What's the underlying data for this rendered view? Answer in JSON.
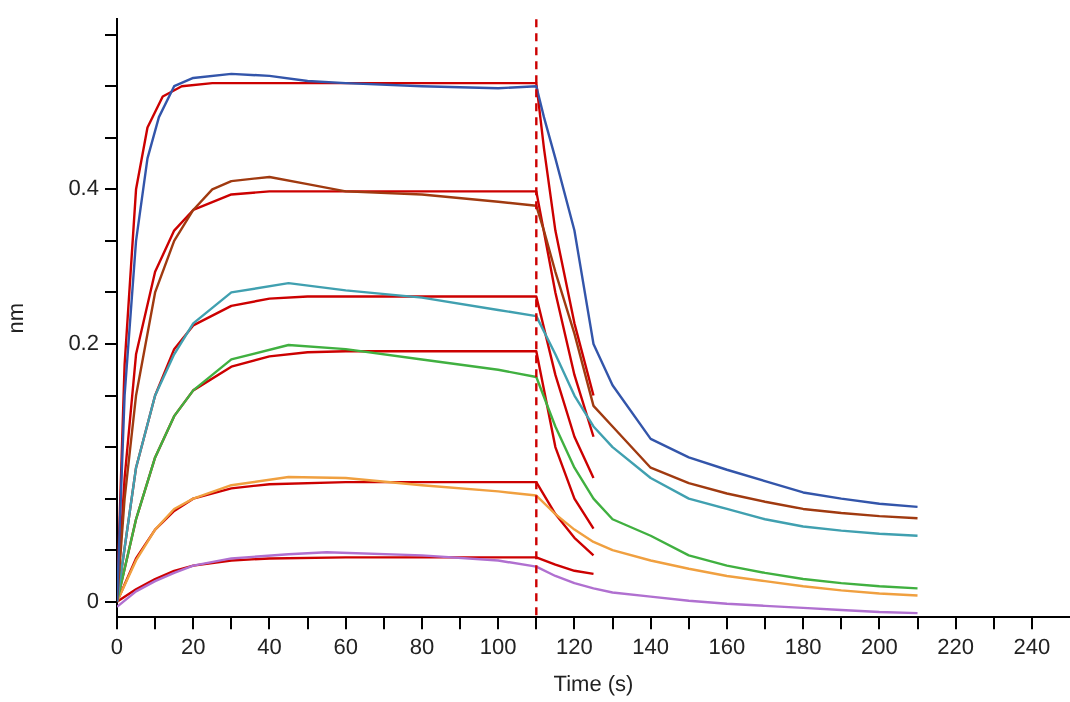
{
  "chart_data": {
    "type": "line",
    "xlabel": "Time (s)",
    "ylabel": "nm",
    "legend": false,
    "grid": false,
    "marker": "none",
    "line_style": "solid",
    "xlim": [
      0,
      250
    ],
    "xticks": [
      0,
      {
        "value": 10,
        "label": null
      },
      20,
      {
        "value": 30,
        "label": null
      },
      40,
      {
        "value": 50,
        "label": null
      },
      60,
      {
        "value": 70,
        "label": null
      },
      80,
      {
        "value": 90,
        "label": null
      },
      100,
      {
        "value": 110,
        "label": null
      },
      120,
      {
        "value": 130,
        "label": null
      },
      140,
      {
        "value": 150,
        "label": null
      },
      160,
      {
        "value": 170,
        "label": null
      },
      180,
      {
        "value": 190,
        "label": null
      },
      200,
      {
        "value": 210,
        "label": null
      },
      220,
      {
        "value": 230,
        "label": null
      },
      240
    ],
    "ylim": [
      -0.015,
      0.565
    ],
    "yticks": [
      0,
      {
        "value": 0.05,
        "label": null
      },
      {
        "value": 0.1,
        "label": null
      },
      {
        "value": 0.15,
        "label": null
      },
      {
        "value": 0.2,
        "label": null
      },
      {
        "value": 0.25,
        "label": "0.2"
      },
      {
        "value": 0.3,
        "label": null
      },
      {
        "value": 0.35,
        "label": null
      },
      {
        "value": 0.4,
        "label": "0.4"
      },
      {
        "value": 0.45,
        "label": null
      },
      {
        "value": 0.5,
        "label": null
      },
      {
        "value": 0.55,
        "label": null
      }
    ],
    "ref_lines": [
      {
        "axis": "x",
        "value": 110,
        "color": "#cc0000",
        "line_style": "dashed"
      }
    ],
    "series": [
      {
        "color": "#3355aa",
        "x": [
          0,
          2,
          5,
          8,
          11,
          15,
          20,
          30,
          40,
          50,
          60,
          80,
          100,
          110,
          112,
          115,
          120,
          125,
          130,
          140,
          150,
          160,
          170,
          180,
          190,
          200,
          210
        ],
        "values": [
          0,
          0.2,
          0.35,
          0.43,
          0.47,
          0.5,
          0.508,
          0.512,
          0.51,
          0.505,
          0.503,
          0.5,
          0.498,
          0.5,
          0.47,
          0.43,
          0.36,
          0.25,
          0.21,
          0.158,
          0.14,
          0.128,
          0.117,
          0.106,
          0.1,
          0.095,
          0.092
        ]
      },
      {
        "color": "#a03a10",
        "x": [
          0,
          2,
          5,
          10,
          15,
          20,
          25,
          30,
          40,
          50,
          60,
          80,
          100,
          110,
          112,
          115,
          120,
          125,
          130,
          140,
          150,
          160,
          170,
          180,
          190,
          200,
          210
        ],
        "values": [
          0,
          0.1,
          0.2,
          0.3,
          0.35,
          0.38,
          0.4,
          0.408,
          0.412,
          0.405,
          0.398,
          0.395,
          0.388,
          0.384,
          0.36,
          0.32,
          0.26,
          0.19,
          0.17,
          0.13,
          0.115,
          0.105,
          0.097,
          0.09,
          0.086,
          0.083,
          0.081
        ]
      },
      {
        "color": "#40a0b0",
        "x": [
          0,
          5,
          10,
          15,
          20,
          30,
          45,
          60,
          80,
          100,
          110,
          115,
          120,
          125,
          130,
          140,
          150,
          160,
          170,
          180,
          190,
          200,
          210
        ],
        "values": [
          0,
          0.13,
          0.2,
          0.24,
          0.27,
          0.3,
          0.309,
          0.302,
          0.295,
          0.283,
          0.277,
          0.24,
          0.2,
          0.17,
          0.15,
          0.12,
          0.1,
          0.09,
          0.08,
          0.073,
          0.069,
          0.066,
          0.064
        ]
      },
      {
        "color": "#40b040",
        "x": [
          0,
          5,
          10,
          15,
          20,
          30,
          45,
          60,
          80,
          100,
          110,
          115,
          120,
          125,
          130,
          140,
          150,
          160,
          170,
          180,
          190,
          200,
          210
        ],
        "values": [
          0,
          0.08,
          0.14,
          0.18,
          0.205,
          0.235,
          0.249,
          0.245,
          0.235,
          0.225,
          0.218,
          0.17,
          0.13,
          0.1,
          0.08,
          0.064,
          0.045,
          0.035,
          0.028,
          0.022,
          0.018,
          0.015,
          0.013
        ]
      },
      {
        "color": "#f0a040",
        "x": [
          0,
          5,
          10,
          15,
          20,
          30,
          45,
          60,
          80,
          100,
          110,
          115,
          120,
          125,
          130,
          140,
          150,
          160,
          170,
          180,
          190,
          200,
          210
        ],
        "values": [
          0,
          0.04,
          0.07,
          0.09,
          0.1,
          0.113,
          0.121,
          0.12,
          0.113,
          0.107,
          0.103,
          0.085,
          0.07,
          0.058,
          0.05,
          0.04,
          0.032,
          0.025,
          0.02,
          0.015,
          0.011,
          0.008,
          0.006
        ]
      },
      {
        "color": "#b070d0",
        "x": [
          0,
          5,
          10,
          15,
          20,
          30,
          45,
          55,
          80,
          100,
          110,
          115,
          120,
          125,
          130,
          140,
          150,
          160,
          170,
          180,
          190,
          200,
          210
        ],
        "values": [
          -0.005,
          0.01,
          0.02,
          0.028,
          0.035,
          0.042,
          0.046,
          0.048,
          0.045,
          0.04,
          0.034,
          0.025,
          0.018,
          0.013,
          0.009,
          0.005,
          0.001,
          -0.002,
          -0.004,
          -0.006,
          -0.008,
          -0.01,
          -0.011
        ]
      },
      {
        "color": "#cc0000",
        "x": [
          0,
          2,
          5,
          8,
          12,
          17,
          25,
          110,
          112,
          115,
          120,
          125
        ],
        "values": [
          0,
          0.23,
          0.4,
          0.46,
          0.49,
          0.5,
          0.503,
          0.503,
          0.44,
          0.36,
          0.27,
          0.2
        ]
      },
      {
        "color": "#cc0000",
        "x": [
          0,
          2,
          5,
          10,
          15,
          20,
          30,
          40,
          110,
          115,
          120,
          125
        ],
        "values": [
          0,
          0.12,
          0.24,
          0.32,
          0.36,
          0.38,
          0.395,
          0.398,
          0.398,
          0.3,
          0.22,
          0.16
        ]
      },
      {
        "color": "#cc0000",
        "x": [
          0,
          5,
          10,
          15,
          20,
          30,
          40,
          50,
          110,
          115,
          120,
          125
        ],
        "values": [
          0,
          0.13,
          0.2,
          0.245,
          0.268,
          0.287,
          0.294,
          0.296,
          0.296,
          0.22,
          0.16,
          0.12
        ]
      },
      {
        "color": "#cc0000",
        "x": [
          0,
          5,
          10,
          15,
          20,
          30,
          40,
          50,
          60,
          110,
          115,
          120,
          125
        ],
        "values": [
          0,
          0.08,
          0.14,
          0.18,
          0.205,
          0.228,
          0.238,
          0.242,
          0.243,
          0.243,
          0.15,
          0.1,
          0.071
        ]
      },
      {
        "color": "#cc0000",
        "x": [
          0,
          5,
          10,
          15,
          20,
          30,
          40,
          60,
          110,
          115,
          120,
          125
        ],
        "values": [
          0,
          0.042,
          0.07,
          0.088,
          0.1,
          0.11,
          0.114,
          0.116,
          0.116,
          0.085,
          0.062,
          0.045
        ]
      },
      {
        "color": "#cc0000",
        "x": [
          0,
          5,
          10,
          15,
          20,
          30,
          40,
          60,
          110,
          115,
          120,
          125
        ],
        "values": [
          0,
          0.012,
          0.022,
          0.03,
          0.035,
          0.04,
          0.042,
          0.043,
          0.043,
          0.036,
          0.03,
          0.027
        ]
      }
    ]
  }
}
